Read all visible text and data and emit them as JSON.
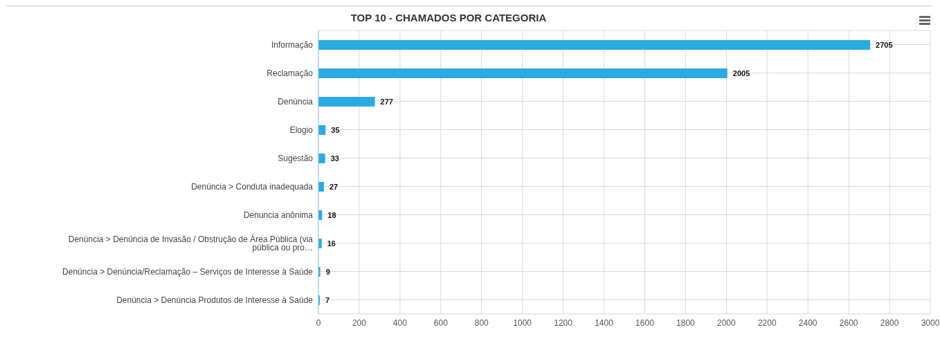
{
  "chart_data": {
    "type": "bar",
    "orientation": "horizontal",
    "title": "TOP 10 - CHAMADOS POR CATEGORIA",
    "categories": [
      "Informação",
      "Reclamação",
      "Denúncia",
      "Elogio",
      "Sugestão",
      "Denúncia > Conduta inadequada",
      "Denuncia anônima",
      "Denúncia > Denúncia de Invasão / Obstrução de Área Pública (via pública ou pro…",
      "Denúncia > Denúncia/Reclamação – Serviços de Interesse à Saúde",
      "Denúncia > Denúncia Produtos de Interesse à Saúde"
    ],
    "values": [
      2705,
      2005,
      277,
      35,
      33,
      27,
      18,
      16,
      9,
      7
    ],
    "color": "#2aaae2",
    "xlim": [
      0,
      3000
    ],
    "xticks": [
      0,
      200,
      400,
      600,
      800,
      1000,
      1200,
      1400,
      1600,
      1800,
      2000,
      2200,
      2400,
      2600,
      2800,
      3000
    ],
    "grid": true,
    "data_labels": true,
    "legend": false
  }
}
